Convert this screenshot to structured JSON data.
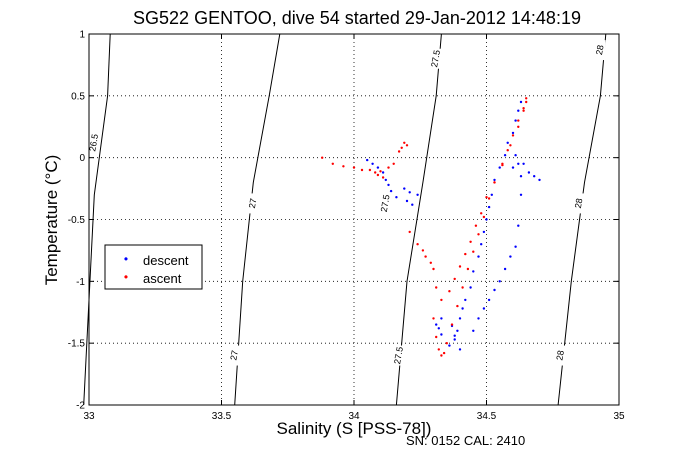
{
  "chart_data": {
    "type": "scatter",
    "title": "SG522 GENTOO, dive 54 started 29-Jan-2012 14:48:19",
    "xlabel": "Salinity (S [PSS-78])",
    "ylabel": "Temperature (°C)",
    "footer": "SN: 0152  CAL: 2410",
    "xlim": [
      33,
      35
    ],
    "ylim": [
      -2,
      1
    ],
    "xticks": [
      33,
      33.5,
      34,
      34.5,
      35
    ],
    "xtick_labels": [
      "33",
      "33.5",
      "34",
      "34.5",
      "35"
    ],
    "yticks": [
      -2,
      -1.5,
      -1,
      -0.5,
      0,
      0.5,
      1
    ],
    "ytick_labels": [
      "-2",
      "-1.5",
      "-1",
      "-0.5",
      "0",
      "0.5",
      "1"
    ],
    "grid": true,
    "legend_position": "left",
    "colors": {
      "descent": "#0000ff",
      "ascent": "#ff0000",
      "isopycnal": "#000000"
    },
    "isopycnals": [
      {
        "label": "26.5",
        "points": [
          [
            32.98,
            -2
          ],
          [
            33.02,
            -0.3
          ],
          [
            33.07,
            0.5
          ],
          [
            33.08,
            1
          ]
        ],
        "label_positions": [
          [
            33.02,
            0.12
          ]
        ]
      },
      {
        "label": "27",
        "points": [
          [
            33.55,
            -2
          ],
          [
            33.58,
            -1.0
          ],
          [
            33.62,
            -0.2
          ],
          [
            33.68,
            0.5
          ],
          [
            33.72,
            1
          ]
        ],
        "label_positions": [
          [
            33.62,
            -0.37
          ],
          [
            33.55,
            -1.6
          ]
        ]
      },
      {
        "label": "27.5",
        "points": [
          [
            34.16,
            -2
          ],
          [
            34.2,
            -1.0
          ],
          [
            34.26,
            -0.2
          ],
          [
            34.31,
            0.5
          ],
          [
            34.33,
            1
          ]
        ],
        "label_positions": [
          [
            34.31,
            0.8
          ],
          [
            34.12,
            -0.37
          ],
          [
            34.17,
            -1.6
          ]
        ]
      },
      {
        "label": "28",
        "points": [
          [
            34.77,
            -2
          ],
          [
            34.82,
            -1.0
          ],
          [
            34.87,
            -0.2
          ],
          [
            34.93,
            0.5
          ],
          [
            34.95,
            1
          ]
        ],
        "label_positions": [
          [
            34.93,
            0.87
          ],
          [
            34.85,
            -0.37
          ],
          [
            34.78,
            -1.6
          ]
        ]
      }
    ],
    "series": [
      {
        "name": "descent",
        "x": [
          34.63,
          34.62,
          34.61,
          34.6,
          34.58,
          34.57,
          34.55,
          34.53,
          34.52,
          34.51,
          34.5,
          34.49,
          34.48,
          34.47,
          34.45,
          34.44,
          34.42,
          34.41,
          34.4,
          34.39,
          34.38,
          34.36,
          34.33,
          34.32,
          34.31,
          34.33,
          34.37,
          34.38,
          34.4,
          34.45,
          34.47,
          34.49,
          34.51,
          34.53,
          34.55,
          34.57,
          34.59,
          34.61,
          34.62,
          34.63,
          34.63,
          34.62,
          34.6,
          34.61,
          34.64,
          34.66,
          34.68,
          34.7,
          34.05,
          34.07,
          34.09,
          34.11,
          34.12,
          34.13,
          34.14,
          34.16,
          34.19,
          34.2,
          34.22,
          34.21,
          34.24
        ],
        "y": [
          0.45,
          0.38,
          0.3,
          0.2,
          0.12,
          0.02,
          -0.08,
          -0.18,
          -0.3,
          -0.4,
          -0.5,
          -0.6,
          -0.7,
          -0.8,
          -0.92,
          -1.05,
          -1.15,
          -1.22,
          -1.3,
          -1.4,
          -1.47,
          -1.52,
          -1.43,
          -1.38,
          -1.35,
          -1.3,
          -1.36,
          -1.44,
          -1.55,
          -1.4,
          -1.3,
          -1.22,
          -1.15,
          -1.07,
          -1.0,
          -0.9,
          -0.8,
          -0.72,
          -0.55,
          -0.3,
          -0.15,
          -0.05,
          -0.08,
          0.02,
          -0.05,
          -0.12,
          -0.15,
          -0.18,
          -0.02,
          -0.05,
          -0.08,
          -0.12,
          -0.18,
          -0.22,
          -0.27,
          -0.32,
          -0.25,
          -0.35,
          -0.38,
          -0.28,
          -0.3
        ]
      },
      {
        "name": "ascent",
        "x": [
          34.65,
          34.64,
          34.62,
          34.6,
          34.58,
          34.56,
          34.53,
          34.51,
          34.49,
          34.47,
          34.45,
          34.43,
          34.41,
          34.39,
          34.37,
          34.35,
          34.34,
          34.33,
          34.32,
          34.31,
          34.3,
          34.31,
          34.33,
          34.36,
          34.38,
          34.4,
          34.42,
          34.44,
          34.46,
          34.48,
          34.5,
          34.53,
          34.56,
          34.59,
          34.62,
          34.64,
          34.65,
          33.88,
          33.92,
          33.96,
          34.0,
          34.03,
          34.06,
          34.08,
          34.1,
          34.09,
          34.11,
          34.13,
          34.15,
          34.17,
          34.19,
          34.2,
          34.18,
          34.21,
          34.24,
          34.26,
          34.27,
          34.29,
          34.3
        ],
        "y": [
          0.48,
          0.4,
          0.3,
          0.18,
          0.06,
          -0.06,
          -0.2,
          -0.33,
          -0.48,
          -0.62,
          -0.76,
          -0.9,
          -1.05,
          -1.2,
          -1.35,
          -1.5,
          -1.58,
          -1.6,
          -1.55,
          -1.45,
          -1.3,
          -1.05,
          -1.15,
          -1.08,
          -0.98,
          -0.88,
          -0.78,
          -0.68,
          -0.55,
          -0.45,
          -0.32,
          -0.2,
          -0.05,
          0.1,
          0.25,
          0.38,
          0.45,
          0.0,
          -0.05,
          -0.07,
          -0.08,
          -0.1,
          -0.1,
          -0.12,
          -0.11,
          -0.14,
          -0.16,
          -0.08,
          -0.05,
          0.05,
          0.12,
          0.1,
          0.08,
          -0.6,
          -0.7,
          -0.75,
          -0.8,
          -0.85,
          -0.9
        ]
      }
    ]
  }
}
